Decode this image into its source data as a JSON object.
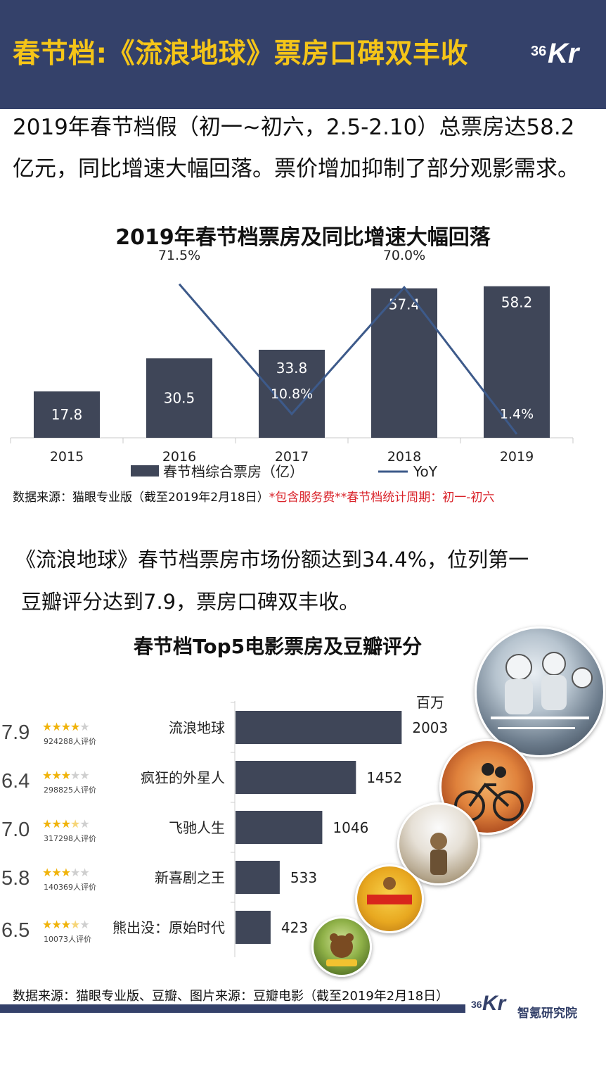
{
  "header": {
    "title": "春节档:《流浪地球》票房口碑双丰收",
    "logo_num": "36",
    "logo_kr": "Kr"
  },
  "intro": {
    "text": "2019年春节档假（初一~初六，2.5-2.10）总票房达58.2亿元，同比增速大幅回落。票价增加抑制了部分观影需求。"
  },
  "source1": {
    "main": "数据来源：猫眼专业版（截至2019年2月18日）",
    "note": "*包含服务费**春节档统计周期：初一-初六"
  },
  "paragraph2": {
    "line1": "《流浪地球》春节档票房市场份额达到34.4%，位列第一",
    "line2": "豆瓣评分达到7.9，票房口碑双丰收。"
  },
  "source2": {
    "text": "数据来源：猫眼专业版、豆瓣、图片来源：豆瓣电影（截至2019年2月18日）"
  },
  "footer": {
    "logo_num": "36",
    "logo_kr": "Kr",
    "org": "智氪研究院"
  },
  "colors": {
    "navy": "#34416a",
    "bar": "#3f4658",
    "line": "#3d5a8a",
    "title_yellow": "#f5c518",
    "star": "#f0b30a",
    "note_red": "#d9232a"
  },
  "chart_data": [
    {
      "type": "bar",
      "title": "2019年春节档票房及同比增速大幅回落",
      "categories": [
        "2015",
        "2016",
        "2017",
        "2018",
        "2019"
      ],
      "series": [
        {
          "name": "春节档综合票房（亿）",
          "type": "bar",
          "values": [
            17.8,
            30.5,
            33.8,
            57.4,
            58.2
          ],
          "labels": [
            "17.8",
            "30.5",
            "33.8",
            "57.4",
            "58.2"
          ]
        },
        {
          "name": "YoY",
          "type": "line",
          "values": [
            71.5,
            10.8,
            70.0,
            1.4
          ],
          "x": [
            "2016",
            "2017",
            "2018",
            "2019"
          ],
          "labels": [
            "71.5%",
            "10.8%",
            "70.0%",
            "1.4%"
          ]
        }
      ],
      "legend": "bottom"
    },
    {
      "type": "bar",
      "orientation": "horizontal",
      "title": "春节档Top5电影票房及豆瓣评分",
      "unit": "百万",
      "categories": [
        "流浪地球",
        "疯狂的外星人",
        "飞驰人生",
        "新喜剧之王",
        "熊出没：原始时代"
      ],
      "values": [
        2003,
        1452,
        1046,
        533,
        423
      ],
      "labels": [
        "2003",
        "1452",
        "1046",
        "533",
        "423"
      ],
      "ratings": [
        "7.9",
        "6.4",
        "7.0",
        "5.8",
        "6.5"
      ],
      "stars": [
        4,
        3,
        3.5,
        3,
        3.5
      ],
      "rating_counts": [
        "924288人评价",
        "298825人评价",
        "317298人评价",
        "140369人评价",
        "10073人评价"
      ]
    }
  ]
}
